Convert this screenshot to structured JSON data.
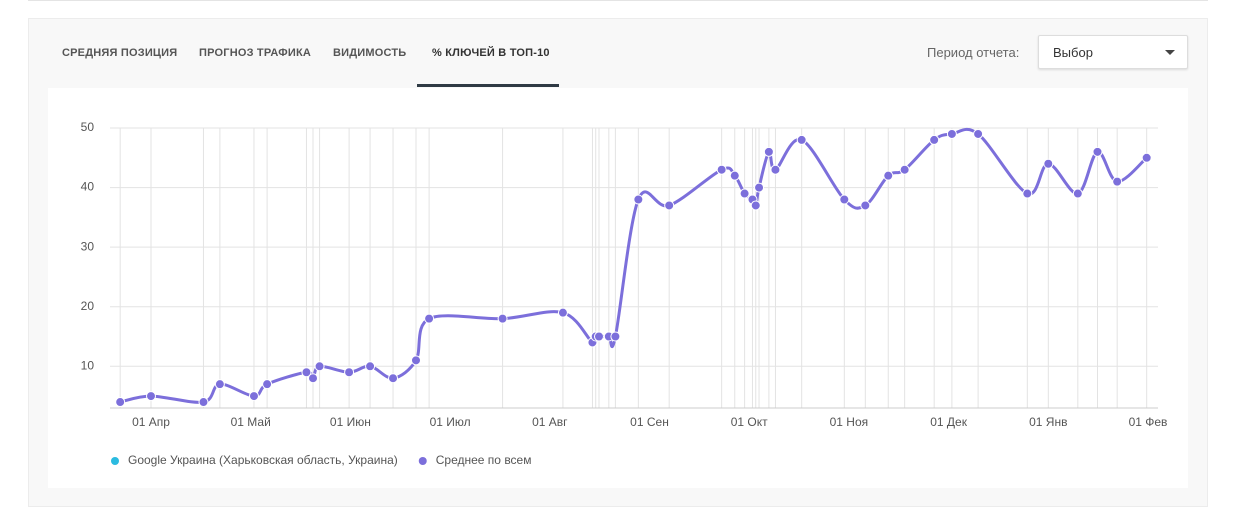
{
  "tabs": [
    "СРЕДНЯЯ ПОЗИЦИЯ",
    "ПРОГНОЗ ТРАФИКА",
    "ВИДИМОСТЬ",
    "% КЛЮЧЕЙ В ТОП-10"
  ],
  "period_label": "Период отчета:",
  "period_select": "Выбор",
  "chart_data": {
    "type": "line",
    "x": [
      "22 Мар",
      "01 Апр",
      "17 Апр",
      "22 Апр",
      "02 Май",
      "06 Май",
      "18 Май",
      "20 Май",
      "22 Май",
      "31 Май",
      "07 Июн",
      "14 Июн",
      "21 Июн",
      "25 Июн",
      "17 Июл",
      "05 Авг",
      "14 Авг",
      "15 Авг",
      "16 Авг",
      "19 Авг",
      "21 Авг",
      "28 Авг",
      "07 Сен",
      "23 Сен",
      "27 Сен",
      "30 Сен",
      "02 Окт",
      "03 Окт",
      "04 Окт",
      "07 Окт",
      "09 Окт",
      "17 Окт",
      "30 Окт",
      "06 Ноя",
      "13 Ноя",
      "18 Ноя",
      "27 Ноя",
      "02 Дек",
      "10 Дек",
      "25 Дек",
      "01 Янв",
      "10 Янв",
      "16 Янв",
      "22 Янв",
      "31 Янв"
    ],
    "series": [
      {
        "name": "Google Украина (Харьковская область, Украина)",
        "color": "#2bbbe0",
        "values": null
      },
      {
        "name": "Среднее по всем",
        "color": "#7c6fdb",
        "values": [
          4,
          5,
          4,
          7,
          5,
          7,
          9,
          8,
          10,
          9,
          10,
          8,
          11,
          18,
          18,
          19,
          14,
          15,
          15,
          15,
          15,
          38,
          37,
          43,
          42,
          39,
          38,
          37,
          40,
          46,
          43,
          48,
          38,
          37,
          42,
          43,
          48,
          49,
          49,
          39,
          44,
          39,
          46,
          41,
          45
        ]
      }
    ],
    "xticks": [
      "01 Апр",
      "01 Май",
      "01 Июн",
      "01 Июл",
      "01 Авг",
      "01 Сен",
      "01 Окт",
      "01 Ноя",
      "01 Дек",
      "01 Янв",
      "01 Фев"
    ],
    "ylim": [
      3,
      50
    ],
    "yticks": [
      10,
      20,
      30,
      40,
      50
    ],
    "grid": true
  }
}
